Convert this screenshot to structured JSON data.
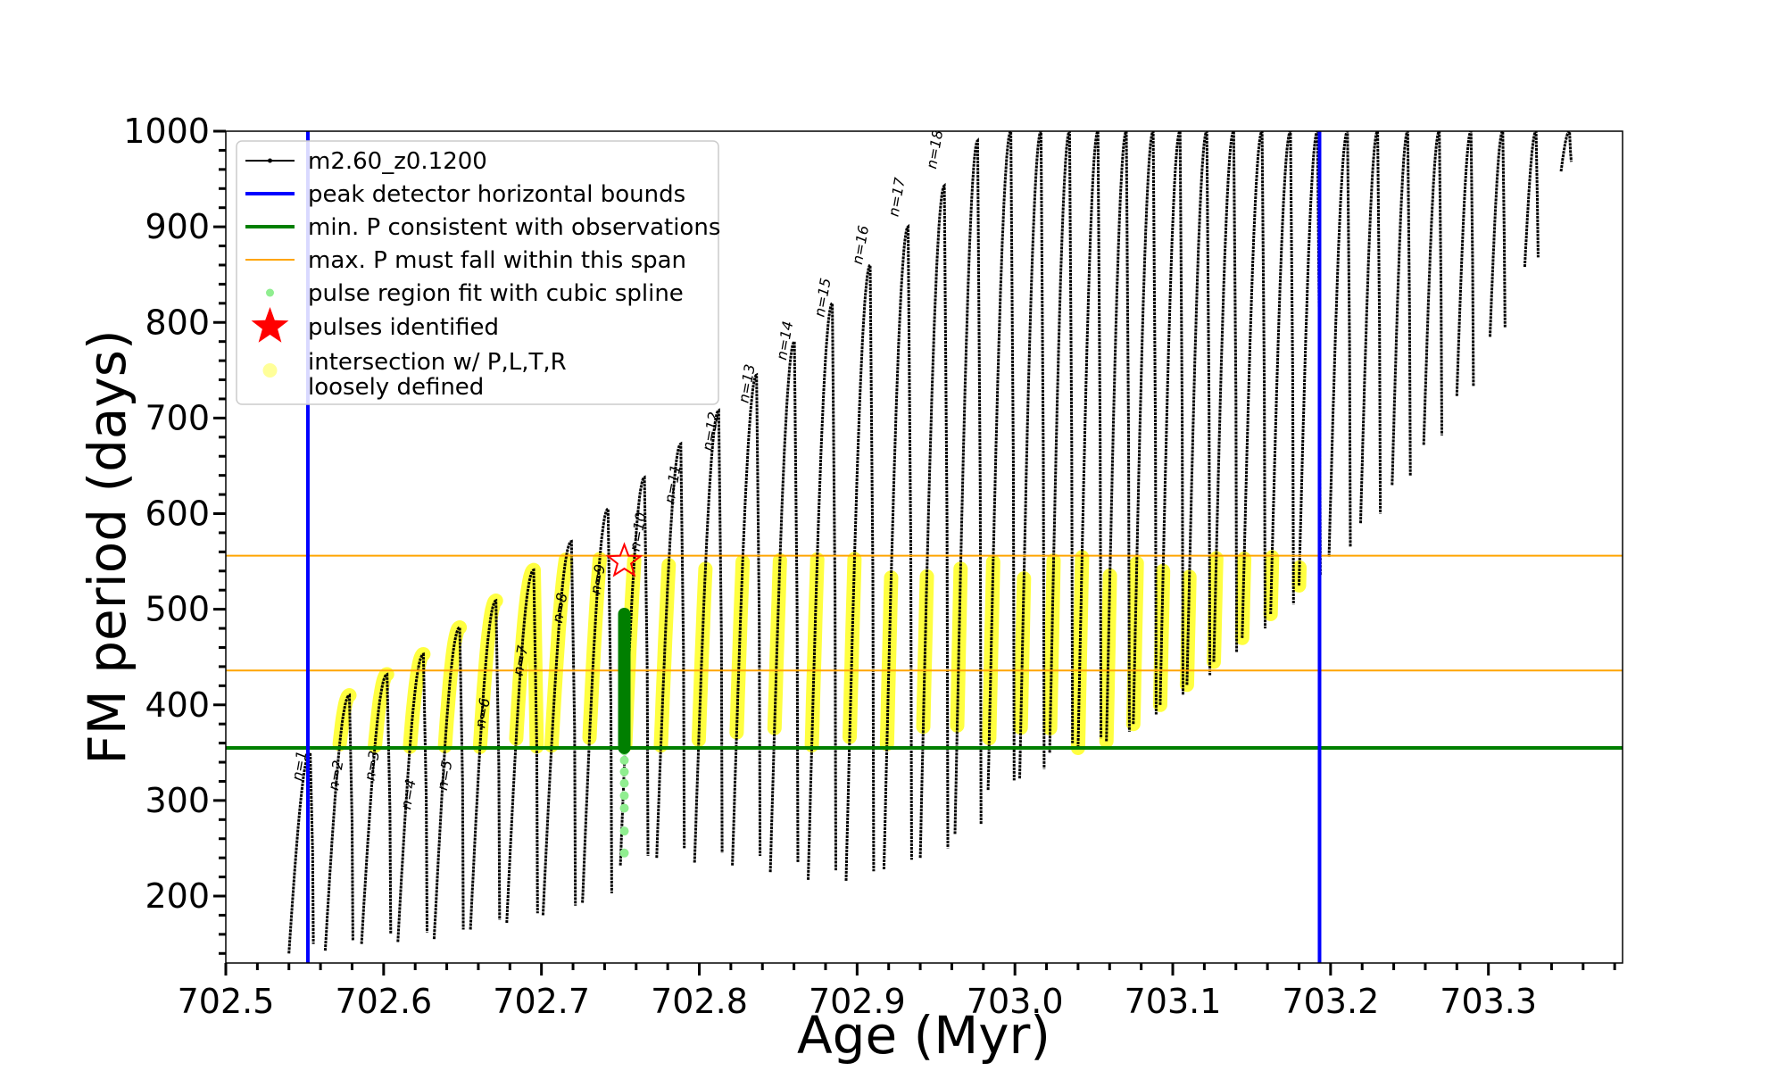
{
  "chart_data": {
    "type": "line",
    "xlabel": "Age (Myr)",
    "ylabel": "FM period (days)",
    "xlim": [
      702.5,
      703.385
    ],
    "ylim": [
      130,
      1000
    ],
    "x_ticks": [
      702.5,
      702.6,
      702.7,
      702.8,
      702.9,
      703.0,
      703.1,
      703.2,
      703.3
    ],
    "x_tick_labels": [
      "702.5",
      "702.6",
      "702.7",
      "702.8",
      "702.9",
      "703.0",
      "703.1",
      "703.2",
      "703.3"
    ],
    "y_ticks": [
      200,
      300,
      400,
      500,
      600,
      700,
      800,
      900,
      1000
    ],
    "y_tick_labels": [
      "200",
      "300",
      "400",
      "500",
      "600",
      "700",
      "800",
      "900",
      "1000"
    ],
    "grid": false,
    "legend_placement": "upper-left",
    "legend": [
      {
        "label": "m2.60_z0.1200",
        "kind": "line-marker",
        "color": "#000000"
      },
      {
        "label": "peak detector horizontal bounds",
        "kind": "line",
        "color": "#0000ff"
      },
      {
        "label": "min. P consistent with observations",
        "kind": "line",
        "color": "#007f00"
      },
      {
        "label": "max. P must fall within this span",
        "kind": "thin-line",
        "color": "#ffa500"
      },
      {
        "label": "pulse region fit with cubic spline",
        "kind": "dot",
        "color": "#90ee90"
      },
      {
        "label": "pulses identified",
        "kind": "star",
        "color": "#ff0000"
      },
      {
        "label": "intersection w/ P,L,T,R\nloosely defined",
        "kind": "dot",
        "color": "#ffff99"
      }
    ],
    "vertical_lines": {
      "color": "#0000ff",
      "x": [
        702.552,
        703.193
      ]
    },
    "min_period_line": {
      "color": "#007f00",
      "y": 355
    },
    "max_period_span": {
      "color": "#ffa500",
      "y": [
        436,
        556
      ]
    },
    "band": {
      "low": 355,
      "high": 556
    },
    "pulses": [
      {
        "n": 1,
        "start": 702.54,
        "end": 702.555,
        "min": 140,
        "peak": 350
      },
      {
        "n": 2,
        "start": 702.563,
        "end": 702.58,
        "min": 143,
        "peak": 410
      },
      {
        "n": 3,
        "start": 702.586,
        "end": 702.604,
        "min": 150,
        "peak": 432
      },
      {
        "n": 4,
        "start": 702.609,
        "end": 702.627,
        "min": 152,
        "peak": 453
      },
      {
        "n": 5,
        "start": 702.632,
        "end": 702.65,
        "min": 155,
        "peak": 481
      },
      {
        "n": 6,
        "start": 702.655,
        "end": 702.673,
        "min": 165,
        "peak": 509
      },
      {
        "n": 7,
        "start": 702.678,
        "end": 702.697,
        "min": 172,
        "peak": 541
      },
      {
        "n": 8,
        "start": 702.701,
        "end": 702.721,
        "min": 180,
        "peak": 571
      },
      {
        "n": 9,
        "start": 702.726,
        "end": 702.744,
        "min": 193,
        "peak": 605
      },
      {
        "n": 10,
        "start": 702.75,
        "end": 702.767,
        "min": 232,
        "peak": 638
      },
      {
        "n": 11,
        "start": 702.773,
        "end": 702.79,
        "min": 240,
        "peak": 673
      },
      {
        "n": 12,
        "start": 702.797,
        "end": 702.814,
        "min": 235,
        "peak": 708
      },
      {
        "n": 13,
        "start": 702.821,
        "end": 702.838,
        "min": 232,
        "peak": 745
      },
      {
        "n": 14,
        "start": 702.845,
        "end": 702.862,
        "min": 225,
        "peak": 780
      },
      {
        "n": 15,
        "start": 702.869,
        "end": 702.886,
        "min": 217,
        "peak": 820
      },
      {
        "n": 16,
        "start": 702.893,
        "end": 702.91,
        "min": 216,
        "peak": 860
      },
      {
        "n": 17,
        "start": 702.917,
        "end": 702.934,
        "min": 228,
        "peak": 900
      },
      {
        "n": 18,
        "start": 702.94,
        "end": 702.957,
        "min": 240,
        "peak": 943
      },
      {
        "n": 19,
        "start": 702.962,
        "end": 702.978,
        "min": 265,
        "peak": 990
      },
      {
        "n": 20,
        "start": 702.983,
        "end": 702.999,
        "min": 311,
        "peak": 1000
      },
      {
        "n": 21,
        "start": 703.003,
        "end": 703.018,
        "min": 323,
        "peak": 1000
      },
      {
        "n": 22,
        "start": 703.022,
        "end": 703.036,
        "min": 350,
        "peak": 1000
      },
      {
        "n": 23,
        "start": 703.04,
        "end": 703.054,
        "min": 355,
        "peak": 1000
      },
      {
        "n": 24,
        "start": 703.058,
        "end": 703.072,
        "min": 362,
        "peak": 1000
      },
      {
        "n": 25,
        "start": 703.075,
        "end": 703.089,
        "min": 380,
        "peak": 1000
      },
      {
        "n": 26,
        "start": 703.092,
        "end": 703.106,
        "min": 400,
        "peak": 1000
      },
      {
        "n": 27,
        "start": 703.109,
        "end": 703.123,
        "min": 421,
        "peak": 1000
      },
      {
        "n": 28,
        "start": 703.126,
        "end": 703.14,
        "min": 445,
        "peak": 1000
      },
      {
        "n": 29,
        "start": 703.144,
        "end": 703.158,
        "min": 470,
        "peak": 1000
      },
      {
        "n": 30,
        "start": 703.162,
        "end": 703.176,
        "min": 495,
        "peak": 1000
      },
      {
        "n": 31,
        "start": 703.18,
        "end": 703.193,
        "min": 525,
        "peak": 1000
      },
      {
        "n": 32,
        "start": 703.199,
        "end": 703.212,
        "min": 555,
        "peak": 1000
      },
      {
        "n": 33,
        "start": 703.219,
        "end": 703.231,
        "min": 590,
        "peak": 1000
      },
      {
        "n": 34,
        "start": 703.239,
        "end": 703.25,
        "min": 630,
        "peak": 1000
      },
      {
        "n": 35,
        "start": 703.259,
        "end": 703.27,
        "min": 672,
        "peak": 1000
      },
      {
        "n": 36,
        "start": 703.28,
        "end": 703.29,
        "min": 723,
        "peak": 1000
      },
      {
        "n": 37,
        "start": 703.301,
        "end": 703.31,
        "min": 785,
        "peak": 1000
      },
      {
        "n": 38,
        "start": 703.323,
        "end": 703.331,
        "min": 858,
        "peak": 1000
      },
      {
        "n": 39,
        "start": 703.346,
        "end": 703.352,
        "min": 958,
        "peak": 1000
      }
    ],
    "pulse_labels": [
      {
        "text": "n=1",
        "x": 702.548,
        "y": 320
      },
      {
        "text": "n=2",
        "x": 702.571,
        "y": 310
      },
      {
        "text": "n=3",
        "x": 702.594,
        "y": 320
      },
      {
        "text": "n=4",
        "x": 702.617,
        "y": 290
      },
      {
        "text": "n=5",
        "x": 702.64,
        "y": 310
      },
      {
        "text": "n=6",
        "x": 702.664,
        "y": 375
      },
      {
        "text": "n=7",
        "x": 702.688,
        "y": 430
      },
      {
        "text": "n=8",
        "x": 702.713,
        "y": 485
      },
      {
        "text": "n=9",
        "x": 702.737,
        "y": 515
      },
      {
        "text": "n=10",
        "x": 702.762,
        "y": 560
      },
      {
        "text": "n=11",
        "x": 702.784,
        "y": 610
      },
      {
        "text": "n=12",
        "x": 702.808,
        "y": 665
      },
      {
        "text": "n=13",
        "x": 702.831,
        "y": 715
      },
      {
        "text": "n=14",
        "x": 702.855,
        "y": 760
      },
      {
        "text": "n=15",
        "x": 702.879,
        "y": 805
      },
      {
        "text": "n=16",
        "x": 702.903,
        "y": 860
      },
      {
        "text": "n=17",
        "x": 702.926,
        "y": 910
      },
      {
        "text": "n=18",
        "x": 702.95,
        "y": 960
      }
    ],
    "spline_points": {
      "color": "#90ee90",
      "x": 702.7525,
      "y": [
        245,
        268,
        292,
        305,
        318,
        330,
        342,
        352
      ]
    },
    "spline_dark_segment": {
      "color": "#007f00",
      "x": 702.7525,
      "y": [
        355,
        495
      ]
    },
    "pulse_identified": {
      "x": 702.7525,
      "y": 550,
      "color": "#ff0000"
    }
  }
}
